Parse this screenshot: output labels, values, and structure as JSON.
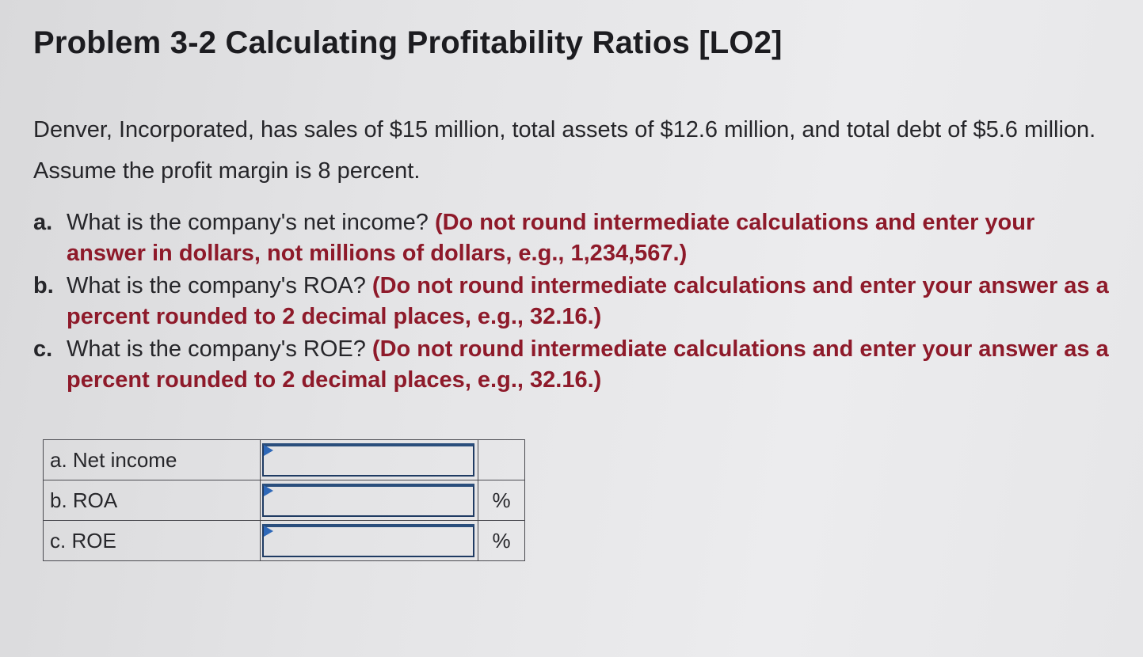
{
  "title": "Problem 3-2 Calculating Profitability Ratios [LO2]",
  "intro": "Denver, Incorporated, has sales of $15 million, total assets of $12.6 million, and total debt of $5.6 million. Assume the profit margin is 8 percent.",
  "questions": [
    {
      "marker": "a.",
      "text": "What is the company's net income?",
      "instruction": "(Do not round intermediate calculations and enter your answer in dollars, not millions of dollars, e.g., 1,234,567.)"
    },
    {
      "marker": "b.",
      "text": "What is the company's ROA?",
      "instruction": "(Do not round intermediate calculations and enter your answer as a percent rounded to 2 decimal places, e.g., 32.16.)"
    },
    {
      "marker": "c.",
      "text": "What is the company's ROE?",
      "instruction": "(Do not round intermediate calculations and enter your answer as a percent rounded to 2 decimal places, e.g., 32.16.)"
    }
  ],
  "answer_table": [
    {
      "label": "a. Net income",
      "value": "",
      "unit": ""
    },
    {
      "label": "b. ROA",
      "value": "",
      "unit": "%"
    },
    {
      "label": "c. ROE",
      "value": "",
      "unit": "%"
    }
  ],
  "colors": {
    "instruction_text": "#8e1a2a",
    "input_border": "#1f3b63",
    "input_flag": "#2e68b8"
  }
}
